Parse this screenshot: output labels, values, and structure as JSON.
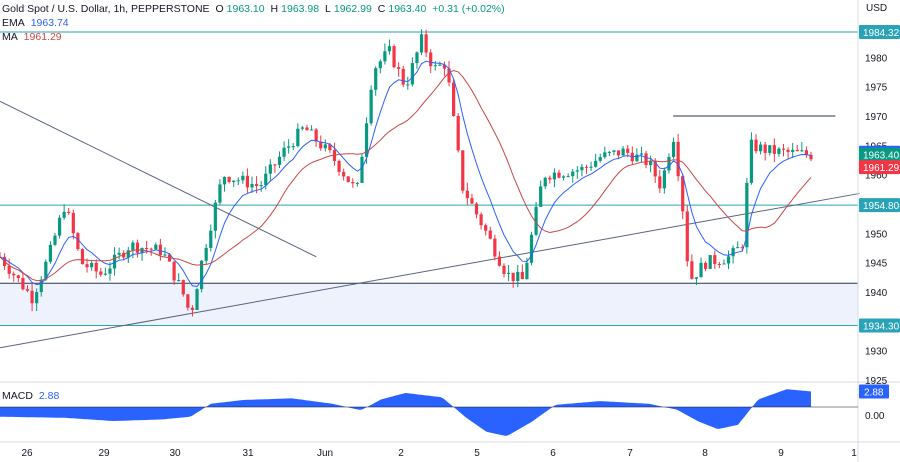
{
  "header": {
    "symbol": "Gold Spot / U.S. Dollar, 1h, PEPPERSTONE",
    "open_label": "O",
    "open": "1963.10",
    "high_label": "H",
    "high": "1963.98",
    "low_label": "L",
    "low": "1962.99",
    "close_label": "C",
    "close": "1963.40",
    "change": "+0.31 (+0.02%)",
    "ema_label": "EMA",
    "ema_value": "1963.74",
    "ma_label": "MA",
    "ma_value": "1961.29",
    "currency": "USD"
  },
  "macd": {
    "label": "MACD",
    "value": "2.88",
    "zero_label": "0.00"
  },
  "colors": {
    "up": "#089981",
    "down": "#f23645",
    "ema": "#2962ff",
    "ma": "#c94848",
    "level": "#2aa3b8",
    "trend": "#5a6480",
    "zone": "#eef2fc",
    "macd_fill": "#2962ff"
  },
  "chart_data": {
    "type": "candlestick",
    "title": "Gold Spot / U.S. Dollar, 1h, PEPPERSTONE",
    "ylabel": "USD",
    "ylim": [
      1925,
      1985
    ],
    "y_ticks": [
      1925,
      1930,
      1935,
      1940,
      1945,
      1950,
      1955,
      1960,
      1965,
      1970,
      1975,
      1980,
      1985
    ],
    "x_ticks": [
      "26",
      "29",
      "30",
      "31",
      "Jun",
      "2",
      "5",
      "6",
      "7",
      "8",
      "9",
      "1"
    ],
    "anchors": [
      {
        "t": 0,
        "p": 1946
      },
      {
        "t": 0.04,
        "p": 1939
      },
      {
        "t": 0.06,
        "p": 1946
      },
      {
        "t": 0.08,
        "p": 1955
      },
      {
        "t": 0.1,
        "p": 1945
      },
      {
        "t": 0.125,
        "p": 1943
      },
      {
        "t": 0.16,
        "p": 1948
      },
      {
        "t": 0.2,
        "p": 1947
      },
      {
        "t": 0.225,
        "p": 1940
      },
      {
        "t": 0.235,
        "p": 1936
      },
      {
        "t": 0.25,
        "p": 1946
      },
      {
        "t": 0.275,
        "p": 1960
      },
      {
        "t": 0.32,
        "p": 1958
      },
      {
        "t": 0.35,
        "p": 1964
      },
      {
        "t": 0.375,
        "p": 1968
      },
      {
        "t": 0.41,
        "p": 1963
      },
      {
        "t": 0.44,
        "p": 1957
      },
      {
        "t": 0.46,
        "p": 1978
      },
      {
        "t": 0.48,
        "p": 1981
      },
      {
        "t": 0.5,
        "p": 1975
      },
      {
        "t": 0.52,
        "p": 1983
      },
      {
        "t": 0.535,
        "p": 1978
      },
      {
        "t": 0.55,
        "p": 1979
      },
      {
        "t": 0.57,
        "p": 1958
      },
      {
        "t": 0.6,
        "p": 1950
      },
      {
        "t": 0.625,
        "p": 1943
      },
      {
        "t": 0.645,
        "p": 1942
      },
      {
        "t": 0.67,
        "p": 1960
      },
      {
        "t": 0.72,
        "p": 1961
      },
      {
        "t": 0.74,
        "p": 1963
      },
      {
        "t": 0.77,
        "p": 1964
      },
      {
        "t": 0.8,
        "p": 1962
      },
      {
        "t": 0.815,
        "p": 1958
      },
      {
        "t": 0.83,
        "p": 1967
      },
      {
        "t": 0.84,
        "p": 1957
      },
      {
        "t": 0.85,
        "p": 1942
      },
      {
        "t": 0.87,
        "p": 1945
      },
      {
        "t": 0.9,
        "p": 1946
      },
      {
        "t": 0.915,
        "p": 1948
      },
      {
        "t": 0.925,
        "p": 1965
      },
      {
        "t": 0.95,
        "p": 1964
      },
      {
        "t": 1,
        "p": 1963.4
      }
    ],
    "levels": [
      1984.32,
      1954.8,
      1941.5,
      1934.3
    ],
    "price_labels": [
      {
        "value": 1984.32,
        "text": "1984.32",
        "kind": "level"
      },
      {
        "value": 1963.74,
        "text": "1963.74",
        "kind": "ema"
      },
      {
        "value": 1963.4,
        "text": "1963.40",
        "kind": "price"
      },
      {
        "value": 1961.29,
        "text": "1961.29",
        "kind": "ma"
      },
      {
        "value": 1954.8,
        "text": "1954.80",
        "kind": "level"
      },
      {
        "value": 1934.3,
        "text": "1934.30",
        "kind": "level"
      }
    ],
    "support_zone": [
      1934.3,
      1941.5
    ],
    "resistance_line": {
      "value": 1970,
      "from_t": 0.83,
      "to_t": 1.03
    },
    "trendlines": [
      {
        "t1": 0.0,
        "p1": 1972.5,
        "t2": 0.39,
        "p2": 1946
      },
      {
        "t1": 0.0,
        "p1": 1930.5,
        "t2": 1.06,
        "p2": 1956.8
      }
    ],
    "macd": {
      "anchors": [
        {
          "t": 0,
          "v": -1.8
        },
        {
          "t": 0.08,
          "v": -2
        },
        {
          "t": 0.14,
          "v": -2.6
        },
        {
          "t": 0.2,
          "v": -2.3
        },
        {
          "t": 0.235,
          "v": -1.8
        },
        {
          "t": 0.26,
          "v": 0.6
        },
        {
          "t": 0.3,
          "v": 1.3
        },
        {
          "t": 0.36,
          "v": 1.6
        },
        {
          "t": 0.41,
          "v": 0.6
        },
        {
          "t": 0.445,
          "v": -0.6
        },
        {
          "t": 0.47,
          "v": 1.4
        },
        {
          "t": 0.5,
          "v": 2.6
        },
        {
          "t": 0.545,
          "v": 1.8
        },
        {
          "t": 0.575,
          "v": -2
        },
        {
          "t": 0.6,
          "v": -4.6
        },
        {
          "t": 0.625,
          "v": -5.4
        },
        {
          "t": 0.655,
          "v": -2.8
        },
        {
          "t": 0.685,
          "v": 0.4
        },
        {
          "t": 0.74,
          "v": 1.1
        },
        {
          "t": 0.8,
          "v": 0.6
        },
        {
          "t": 0.835,
          "v": -0.5
        },
        {
          "t": 0.86,
          "v": -2.6
        },
        {
          "t": 0.885,
          "v": -4.1
        },
        {
          "t": 0.91,
          "v": -3.3
        },
        {
          "t": 0.935,
          "v": 1.4
        },
        {
          "t": 0.97,
          "v": 3.3
        },
        {
          "t": 1,
          "v": 2.88
        }
      ]
    }
  }
}
